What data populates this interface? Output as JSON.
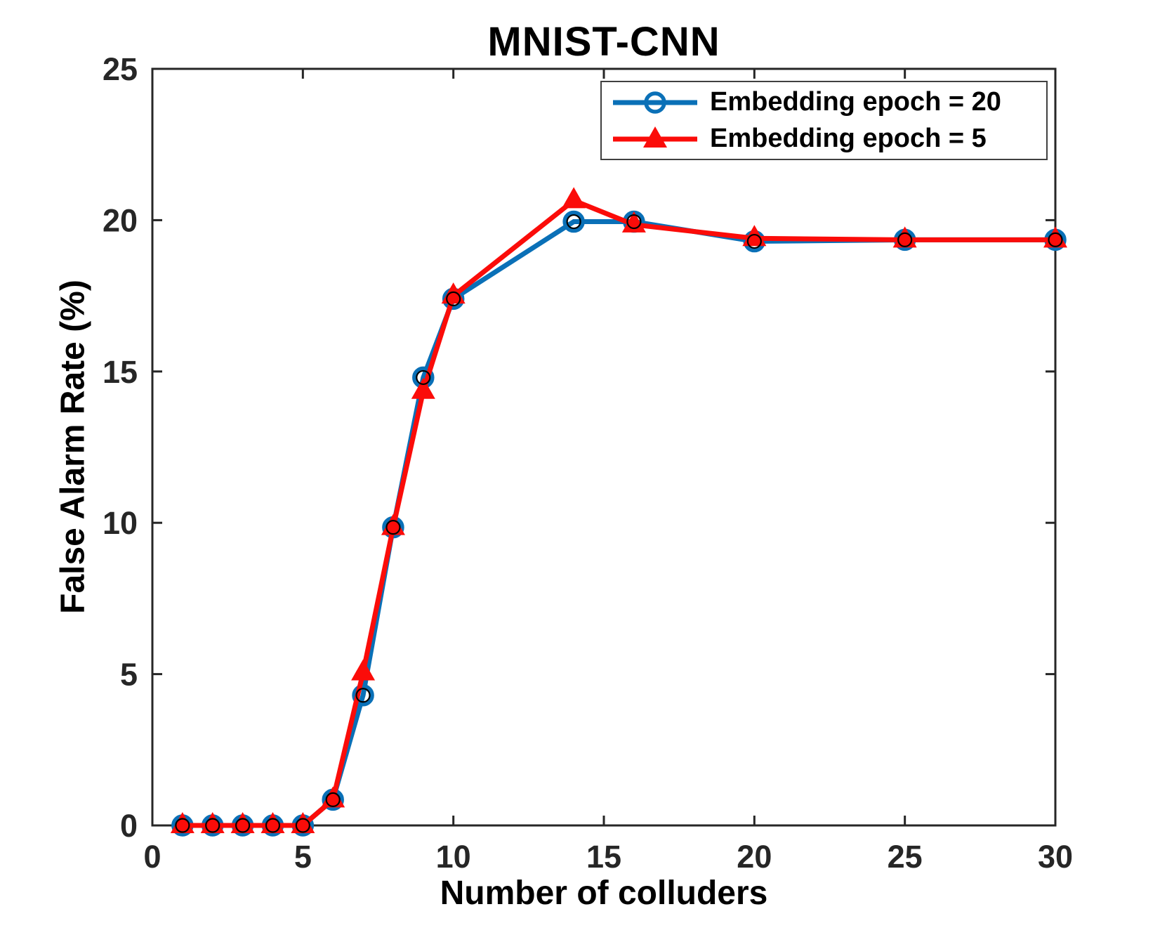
{
  "figure": {
    "background": "#ffffff"
  },
  "colors": {
    "axis": "#262626",
    "tick_label": "#262626",
    "text": "#000000",
    "legend_border": "#404040",
    "series_blue": "#0a70b7",
    "series_red": "#fb0c09",
    "marker_inner_ring": "#000000"
  },
  "chart_data": {
    "type": "line",
    "title": "MNIST-CNN",
    "xlabel": "Number of colluders",
    "ylabel": "False Alarm Rate (%)",
    "xlim": [
      0,
      30
    ],
    "ylim": [
      0,
      25
    ],
    "xticks": [
      0,
      5,
      10,
      15,
      20,
      25,
      30
    ],
    "yticks": [
      0,
      5,
      10,
      15,
      20,
      25
    ],
    "grid": false,
    "legend_position": "top-right",
    "x": [
      1,
      2,
      3,
      4,
      5,
      6,
      7,
      8,
      9,
      10,
      14,
      16,
      20,
      25,
      30
    ],
    "series": [
      {
        "name": "Embedding epoch = 20",
        "color": "#0a70b7",
        "marker": "circle",
        "values": [
          0,
          0,
          0,
          0,
          0,
          0.85,
          4.3,
          9.85,
          14.8,
          17.4,
          19.95,
          19.95,
          19.3,
          19.35,
          19.35
        ]
      },
      {
        "name": "Embedding epoch = 5",
        "color": "#fb0c09",
        "marker": "triangle",
        "values": [
          0,
          0,
          0,
          0,
          0,
          0.85,
          5.05,
          9.85,
          14.35,
          17.5,
          20.65,
          19.85,
          19.4,
          19.35,
          19.35
        ]
      }
    ]
  }
}
